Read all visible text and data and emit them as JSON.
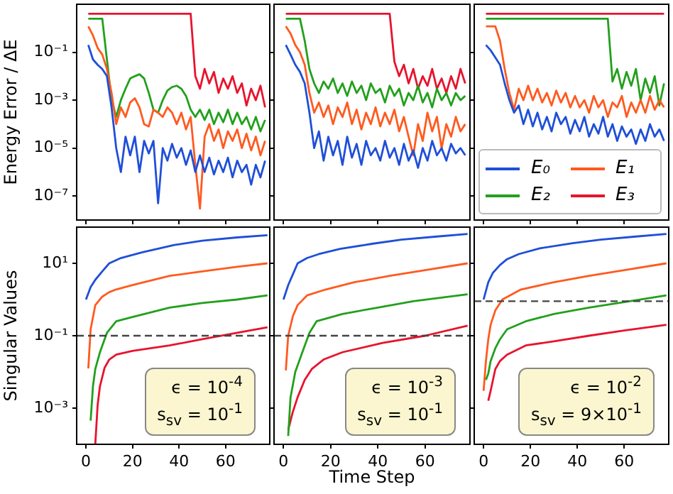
{
  "chart_data": [
    {
      "type": "line",
      "ylabel": "Energy Error / ΔE",
      "log": "y",
      "tick_labels": "y",
      "xlim": [
        -4,
        79
      ],
      "xticks": [
        {
          "value": 0,
          "label": null
        },
        {
          "value": 20,
          "label": null
        },
        {
          "value": 40,
          "label": null
        },
        {
          "value": 60,
          "label": null
        }
      ],
      "ylim": [
        1e-08,
        10
      ],
      "yticks": [
        {
          "value": 1e-07,
          "label": "10⁻⁷"
        },
        {
          "value": 1e-05,
          "label": "10⁻⁵"
        },
        {
          "value": 0.001,
          "label": "10⁻³"
        },
        {
          "value": 0.1,
          "label": "10⁻¹"
        }
      ],
      "x": [
        1,
        3,
        5,
        7,
        9,
        11,
        13,
        15,
        17,
        19,
        21,
        23,
        25,
        27,
        29,
        31,
        33,
        35,
        37,
        39,
        41,
        43,
        45,
        47,
        49,
        51,
        53,
        55,
        57,
        59,
        61,
        63,
        65,
        67,
        69,
        71,
        73,
        75,
        77
      ],
      "series": [
        {
          "color": "#1f4fd8",
          "values": [
            0.2,
            0.05,
            0.03,
            0.02,
            0.01,
            0.0005,
            1e-05,
            1e-06,
            3e-05,
            5e-06,
            3e-05,
            1e-06,
            2e-05,
            6e-06,
            2e-05,
            5e-08,
            1e-05,
            3e-06,
            1.5e-05,
            4e-06,
            1e-05,
            2e-06,
            8e-06,
            1e-06,
            5e-06,
            1e-06,
            4e-06,
            8e-07,
            3e-06,
            1e-06,
            4e-06,
            6e-07,
            3e-06,
            1e-06,
            2e-06,
            3e-07,
            2e-06,
            6e-07,
            3e-06
          ]
        },
        {
          "color": "#ff5a1f",
          "values": [
            1.2,
            0.5,
            0.15,
            0.08,
            0.02,
            0.002,
            0.0001,
            0.0005,
            0.0002,
            0.0008,
            0.0012,
            0.0005,
            0.0001,
            8e-05,
            0.0004,
            0.0003,
            0.0002,
            0.0005,
            0.0003,
            0.0001,
            0.0003,
            6e-05,
            0.0002,
            2e-06,
            3e-08,
            3e-05,
            0.0001,
            2e-05,
            6e-05,
            1e-05,
            5e-05,
            2e-05,
            6e-05,
            1e-05,
            4e-05,
            8e-06,
            3e-05,
            5e-06,
            2e-05
          ]
        },
        {
          "color": "#22a01c",
          "values": [
            2.5,
            2.5,
            2.5,
            2.5,
            0.05,
            0.001,
            0.0002,
            0.001,
            0.003,
            0.008,
            0.01,
            0.012,
            0.008,
            0.002,
            0.0004,
            0.0003,
            0.001,
            0.0025,
            0.0035,
            0.004,
            0.003,
            0.0015,
            0.0004,
            0.0002,
            0.0004,
            0.00015,
            0.0004,
            0.0001,
            0.0003,
            0.00012,
            0.0004,
            0.0001,
            0.0003,
            0.0001,
            0.0002,
            6e-05,
            0.0002,
            5e-05,
            0.00015
          ]
        },
        {
          "color": "#e8132d",
          "values": [
            4,
            4,
            4,
            4,
            4,
            4,
            4,
            4,
            4,
            4,
            4,
            4,
            4,
            4,
            4,
            4,
            4,
            4,
            4,
            4,
            4,
            4,
            4,
            0.01,
            0.003,
            0.02,
            0.005,
            0.015,
            0.002,
            0.008,
            0.003,
            0.01,
            0.002,
            0.005,
            0.0006,
            0.003,
            0.001,
            0.004,
            0.0005
          ]
        }
      ]
    },
    {
      "type": "line",
      "log": "y",
      "tick_labels": false,
      "xlim": [
        -4,
        79
      ],
      "xticks": [
        {
          "value": 0,
          "label": null
        },
        {
          "value": 20,
          "label": null
        },
        {
          "value": 40,
          "label": null
        },
        {
          "value": 60,
          "label": null
        }
      ],
      "ylim": [
        1e-08,
        10
      ],
      "yticks": [
        {
          "value": 1e-07,
          "label": null
        },
        {
          "value": 1e-05,
          "label": null
        },
        {
          "value": 0.001,
          "label": null
        },
        {
          "value": 0.1,
          "label": null
        }
      ],
      "x": [
        1,
        3,
        5,
        7,
        9,
        11,
        13,
        15,
        17,
        19,
        21,
        23,
        25,
        27,
        29,
        31,
        33,
        35,
        37,
        39,
        41,
        43,
        45,
        47,
        49,
        51,
        53,
        55,
        57,
        59,
        61,
        63,
        65,
        67,
        69,
        71,
        73,
        75,
        77
      ],
      "series": [
        {
          "color": "#1f4fd8",
          "values": [
            0.2,
            0.08,
            0.03,
            0.015,
            0.005,
            0.0003,
            1e-05,
            5e-05,
            3e-06,
            3e-05,
            5e-06,
            2e-05,
            2e-06,
            3e-05,
            4e-06,
            1.5e-05,
            2e-06,
            2e-05,
            5e-06,
            1e-05,
            3e-06,
            2e-05,
            4e-06,
            1e-05,
            2e-06,
            1.5e-05,
            3e-06,
            8e-06,
            1.5e-06,
            1e-05,
            3e-06,
            2e-05,
            5e-06,
            1e-05,
            3e-06,
            1.5e-05,
            6e-06,
            1e-05,
            5e-06
          ]
        },
        {
          "color": "#ff5a1f",
          "values": [
            1.2,
            0.6,
            0.2,
            0.1,
            0.03,
            0.002,
            0.0003,
            0.0008,
            0.0002,
            0.0006,
            0.0001,
            0.0005,
            0.0002,
            0.0008,
            0.0001,
            0.0004,
            6e-05,
            0.0003,
            0.0001,
            0.0005,
            8e-05,
            0.0003,
            0.0001,
            0.0004,
            5e-05,
            0.0002,
            3e-05,
            5e-06,
            0.0001,
            2e-05,
            0.0003,
            5e-05,
            0.0002,
            1e-05,
            0.0001,
            3e-05,
            0.0002,
            5e-05,
            0.0001
          ]
        },
        {
          "color": "#22a01c",
          "values": [
            2.5,
            2.5,
            2.5,
            2.5,
            0.3,
            0.02,
            0.005,
            0.002,
            0.006,
            0.003,
            0.008,
            0.002,
            0.005,
            0.0015,
            0.006,
            0.002,
            0.004,
            0.001,
            0.005,
            0.002,
            0.003,
            0.0008,
            0.004,
            0.0015,
            0.003,
            0.0006,
            0.002,
            0.001,
            0.004,
            0.0008,
            0.002,
            0.0005,
            0.003,
            0.001,
            0.002,
            0.0006,
            0.002,
            0.001,
            0.0015
          ]
        },
        {
          "color": "#e8132d",
          "values": [
            4,
            4,
            4,
            4,
            4,
            4,
            4,
            4,
            4,
            4,
            4,
            4,
            4,
            4,
            4,
            4,
            4,
            4,
            4,
            4,
            4,
            4,
            4,
            0.04,
            0.01,
            0.03,
            0.005,
            0.02,
            0.003,
            0.01,
            0.004,
            0.02,
            0.003,
            0.008,
            0.002,
            0.01,
            0.003,
            0.02,
            0.005
          ]
        }
      ]
    },
    {
      "type": "line",
      "log": "y",
      "tick_labels": false,
      "legend": "bottom",
      "xlim": [
        -4,
        79
      ],
      "xticks": [
        {
          "value": 0,
          "label": null
        },
        {
          "value": 20,
          "label": null
        },
        {
          "value": 40,
          "label": null
        },
        {
          "value": 60,
          "label": null
        }
      ],
      "ylim": [
        1e-08,
        10
      ],
      "yticks": [
        {
          "value": 1e-07,
          "label": null
        },
        {
          "value": 1e-05,
          "label": null
        },
        {
          "value": 0.001,
          "label": null
        },
        {
          "value": 0.1,
          "label": null
        }
      ],
      "x": [
        1,
        3,
        5,
        7,
        9,
        11,
        13,
        15,
        17,
        19,
        21,
        23,
        25,
        27,
        29,
        31,
        33,
        35,
        37,
        39,
        41,
        43,
        45,
        47,
        49,
        51,
        53,
        55,
        57,
        59,
        61,
        63,
        65,
        67,
        69,
        71,
        73,
        75,
        77
      ],
      "series": [
        {
          "name": "E₀",
          "color": "#1f4fd8",
          "values": [
            0.2,
            0.12,
            0.06,
            0.03,
            0.005,
            0.001,
            0.0003,
            0.0006,
            0.0001,
            0.0004,
            8e-05,
            0.0003,
            6e-05,
            0.0002,
            5e-05,
            0.0003,
            0.0001,
            0.0002,
            4e-05,
            0.00015,
            5e-05,
            0.0002,
            3e-05,
            0.0001,
            4e-05,
            0.0002,
            3e-05,
            0.0001,
            2e-05,
            8e-05,
            3e-05,
            6e-05,
            1.5e-05,
            6e-05,
            2e-05,
            0.0001,
            3e-05,
            6e-05,
            2e-05
          ]
        },
        {
          "name": "E₁",
          "color": "#ff5a1f",
          "values": [
            1.2,
            1.2,
            1.2,
            0.3,
            0.02,
            0.002,
            0.0004,
            0.003,
            0.001,
            0.004,
            0.001,
            0.003,
            0.0008,
            0.002,
            0.0006,
            0.0025,
            0.0008,
            0.002,
            0.0005,
            0.0015,
            0.0005,
            0.001,
            0.0003,
            0.0015,
            0.0005,
            0.001,
            0.0002,
            0.0008,
            0.0005,
            0.0015,
            0.0002,
            0.0008,
            0.0003,
            0.001,
            0.0003,
            0.0015,
            0.0004,
            0.001,
            0.0005
          ]
        },
        {
          "name": "E₂",
          "color": "#22a01c",
          "values": [
            2.5,
            2.5,
            2.5,
            2.5,
            2.5,
            2.5,
            2.5,
            2.5,
            2.5,
            2.5,
            2.5,
            2.5,
            2.5,
            2.5,
            2.5,
            2.5,
            2.5,
            2.5,
            2.5,
            2.5,
            2.5,
            2.5,
            2.5,
            2.5,
            2.5,
            2.5,
            2.5,
            0.006,
            0.02,
            0.003,
            0.015,
            0.004,
            0.02,
            0.001,
            0.008,
            0.002,
            0.01,
            0.0006,
            0.005
          ]
        },
        {
          "name": "E₃",
          "color": "#e8132d",
          "values": [
            4,
            4,
            4,
            4,
            4,
            4,
            4,
            4,
            4,
            4,
            4,
            4,
            4,
            4,
            4,
            4,
            4,
            4,
            4,
            4,
            4,
            4,
            4,
            4,
            4,
            4,
            4,
            4,
            4,
            4,
            4,
            4,
            4,
            4,
            4,
            4,
            4,
            4,
            4
          ]
        }
      ]
    },
    {
      "type": "line",
      "ylabel": "Singular Values",
      "log": "y",
      "xlim": [
        -4,
        79
      ],
      "xticks": [
        0,
        20,
        40,
        60
      ],
      "ylim": [
        0.0001,
        100
      ],
      "yticks": [
        {
          "value": 0.001,
          "label": "10⁻³"
        },
        {
          "value": 0.1,
          "label": "10⁻¹"
        },
        {
          "value": 10,
          "label": "10¹"
        }
      ],
      "ref_lines": [
        {
          "axis": "y",
          "value": 0.1,
          "color": "#444444",
          "line_style": "dashed"
        }
      ],
      "annotations": [
        "ϵ = 10$^{-4}$",
        "s$_{sv}$ = 10$^{-1}$"
      ],
      "series": [
        {
          "color": "#1f4fd8",
          "x": [
            0,
            2,
            4,
            7,
            10,
            15,
            24,
            38,
            50,
            65,
            78
          ],
          "values": [
            1,
            2.2,
            3.5,
            6,
            10,
            14,
            20,
            32,
            42,
            52,
            60
          ]
        },
        {
          "color": "#ff5a1f",
          "x": [
            1,
            2,
            4,
            7,
            10,
            13,
            20,
            36,
            50,
            65,
            78
          ],
          "values": [
            0.0125,
            0.15,
            0.7,
            1.2,
            1.6,
            1.9,
            2.5,
            4.5,
            6,
            8,
            10
          ]
        },
        {
          "color": "#22a01c",
          "x": [
            2,
            3,
            4,
            6,
            9,
            13,
            20,
            36,
            50,
            65,
            78
          ],
          "values": [
            0.00045,
            0.004,
            0.012,
            0.035,
            0.12,
            0.25,
            0.33,
            0.6,
            0.8,
            1,
            1.3
          ]
        },
        {
          "color": "#e8132d",
          "x": [
            4,
            5,
            6,
            8,
            10,
            13,
            20,
            36,
            50,
            65,
            78
          ],
          "values": [
            0.0001,
            0.0012,
            0.004,
            0.013,
            0.022,
            0.03,
            0.038,
            0.054,
            0.08,
            0.12,
            0.17
          ]
        }
      ]
    },
    {
      "type": "line",
      "xlabel": "Time Step",
      "log": "y",
      "tick_labels": "x",
      "xlim": [
        -4,
        79
      ],
      "xticks": [
        0,
        20,
        40,
        60
      ],
      "ylim": [
        0.0001,
        100
      ],
      "yticks": [
        {
          "value": 0.001,
          "label": null
        },
        {
          "value": 0.1,
          "label": null
        },
        {
          "value": 10,
          "label": null
        }
      ],
      "ref_lines": [
        {
          "axis": "y",
          "value": 0.1,
          "color": "#444444",
          "line_style": "dashed"
        }
      ],
      "annotations": [
        "ϵ = 10$^{-3}$",
        "s$_{sv}$ = 10$^{-1}$"
      ],
      "series": [
        {
          "color": "#1f4fd8",
          "x": [
            0,
            2,
            4,
            6,
            10,
            15,
            24,
            38,
            50,
            65,
            78
          ],
          "values": [
            1,
            2.5,
            5,
            10,
            14,
            18,
            25,
            35,
            45,
            55,
            65
          ]
        },
        {
          "color": "#ff5a1f",
          "x": [
            1,
            2,
            4,
            6,
            10,
            18,
            30,
            45,
            60,
            78
          ],
          "values": [
            0.011,
            0.1,
            0.35,
            0.7,
            1.3,
            1.9,
            3,
            4.5,
            6.5,
            10
          ]
        },
        {
          "color": "#22a01c",
          "x": [
            2,
            3,
            5,
            8,
            11,
            14,
            25,
            40,
            55,
            78
          ],
          "values": [
            0.00017,
            0.002,
            0.01,
            0.035,
            0.12,
            0.25,
            0.4,
            0.6,
            0.9,
            1.4
          ]
        },
        {
          "color": "#e8132d",
          "x": [
            2,
            4,
            6,
            9,
            12,
            17,
            25,
            42,
            60,
            78
          ],
          "values": [
            0.00025,
            0.0008,
            0.002,
            0.006,
            0.012,
            0.022,
            0.035,
            0.063,
            0.1,
            0.19
          ]
        }
      ]
    },
    {
      "type": "line",
      "log": "y",
      "tick_labels": "x",
      "xlim": [
        -4,
        79
      ],
      "xticks": [
        0,
        20,
        40,
        60
      ],
      "ylim": [
        0.0001,
        100
      ],
      "yticks": [
        {
          "value": 0.001,
          "label": null
        },
        {
          "value": 0.1,
          "label": null
        },
        {
          "value": 10,
          "label": null
        }
      ],
      "ref_lines": [
        {
          "axis": "y",
          "value": 0.9,
          "color": "#444444",
          "line_style": "dashed"
        }
      ],
      "annotations": [
        "ϵ = 10$^{-2}$",
        "s$_{sv}$ = 9×10$^{-1}$"
      ],
      "series": [
        {
          "color": "#1f4fd8",
          "x": [
            0,
            2,
            4,
            7,
            10,
            15,
            24,
            38,
            50,
            65,
            78
          ],
          "values": [
            1,
            3,
            5.5,
            9,
            13,
            18,
            26,
            36,
            45,
            55,
            65
          ]
        },
        {
          "color": "#ff5a1f",
          "x": [
            0,
            1,
            2,
            3,
            5,
            8,
            16,
            30,
            45,
            60,
            78
          ],
          "values": [
            0.003,
            0.02,
            0.08,
            0.2,
            0.5,
            1,
            1.9,
            3,
            4.5,
            6.5,
            10
          ]
        },
        {
          "color": "#22a01c",
          "x": [
            1,
            2,
            3,
            5,
            7,
            10,
            18,
            30,
            45,
            60,
            78
          ],
          "values": [
            0.006,
            0.009,
            0.02,
            0.045,
            0.08,
            0.15,
            0.25,
            0.4,
            0.6,
            0.85,
            1.3
          ]
        },
        {
          "color": "#e8132d",
          "x": [
            2,
            3,
            4,
            5,
            7,
            10,
            18,
            30,
            45,
            60,
            78
          ],
          "values": [
            0.0016,
            0.003,
            0.006,
            0.012,
            0.02,
            0.03,
            0.054,
            0.07,
            0.1,
            0.14,
            0.2
          ]
        }
      ]
    }
  ]
}
